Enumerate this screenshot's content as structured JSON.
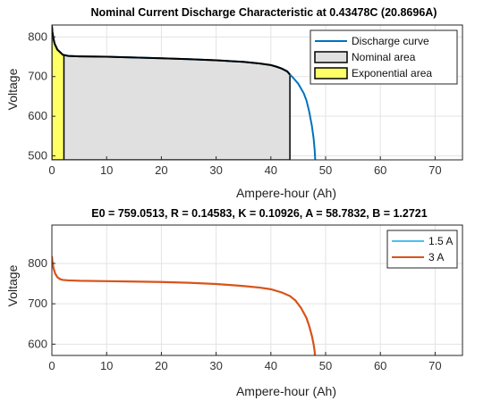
{
  "chart_data": [
    {
      "type": "line",
      "title": "Nominal Current Discharge Characteristic at 0.43478C (20.8696A)",
      "xlabel": "Ampere-hour (Ah)",
      "ylabel": "Voltage",
      "xlim": [
        0,
        75
      ],
      "ylim": [
        490,
        830
      ],
      "xticks": [
        0,
        10,
        20,
        30,
        40,
        50,
        60,
        70
      ],
      "yticks": [
        500,
        600,
        700,
        800
      ],
      "grid": true,
      "legend_position": "top-right",
      "legend": [
        {
          "label": "Discharge curve",
          "kind": "line",
          "color": "#0072BD"
        },
        {
          "label": "Nominal area",
          "kind": "patch",
          "color": "#E0E0E0"
        },
        {
          "label": "Exponential area",
          "kind": "patch",
          "color": "#FFFF66"
        }
      ],
      "series": [
        {
          "name": "Discharge curve",
          "color": "#0072BD",
          "x": [
            0,
            0.1,
            0.3,
            0.5,
            1,
            2,
            3,
            5,
            10,
            15,
            20,
            25,
            30,
            35,
            38,
            40,
            41,
            42,
            43,
            43.48,
            44,
            45,
            46,
            46.5,
            47,
            47.5,
            47.8,
            48.0,
            48.1
          ],
          "y": [
            828,
            812,
            795,
            783,
            768,
            755,
            752,
            751,
            750,
            748,
            746,
            744,
            741,
            737,
            733,
            729,
            725,
            720,
            713,
            705,
            698,
            682,
            658,
            640,
            612,
            575,
            545,
            515,
            490
          ]
        }
      ],
      "areas": [
        {
          "name": "Nominal area",
          "color": "#E0E0E0",
          "x_start": 0,
          "x_end": 43.48
        },
        {
          "name": "Exponential area",
          "color": "#FFFF66",
          "x_start": 0,
          "x_end": 2.2
        }
      ]
    },
    {
      "type": "line",
      "title": "E0 = 759.0513, R = 0.14583, K = 0.10926, A = 58.7832, B = 1.2721",
      "xlabel": "Ampere-hour (Ah)",
      "ylabel": "Voltage",
      "xlim": [
        0,
        75
      ],
      "ylim": [
        572,
        895
      ],
      "xticks": [
        0,
        10,
        20,
        30,
        40,
        50,
        60,
        70
      ],
      "yticks": [
        600,
        700,
        800
      ],
      "grid": true,
      "legend_position": "top-right",
      "series": [
        {
          "name": "1.5 A",
          "color": "#4DBEEE",
          "x": [
            0,
            0.1,
            0.3,
            0.6,
            1,
            1.5,
            2,
            3,
            5,
            10,
            15,
            20,
            25,
            30,
            35,
            38,
            40,
            42,
            43.5,
            44.5,
            45.5,
            46.5,
            47,
            47.5,
            47.8,
            48.0,
            48.05
          ],
          "y": [
            818,
            805,
            788,
            775,
            766,
            761,
            759,
            758,
            757,
            756,
            755,
            754,
            752,
            749,
            744,
            740,
            736,
            728,
            719,
            708,
            690,
            665,
            645,
            620,
            600,
            582,
            572
          ]
        },
        {
          "name": "3 A",
          "color": "#D95319",
          "x": [
            0,
            0.1,
            0.3,
            0.6,
            1,
            1.5,
            2,
            3,
            5,
            10,
            15,
            20,
            25,
            30,
            35,
            38,
            40,
            42,
            43.5,
            44.5,
            45.5,
            46.5,
            47,
            47.5,
            47.8,
            48.0,
            48.05
          ],
          "y": [
            818,
            805,
            788,
            775,
            766,
            761,
            759,
            758,
            757,
            756,
            755,
            754,
            752,
            749,
            744,
            740,
            736,
            728,
            719,
            708,
            690,
            665,
            645,
            620,
            600,
            582,
            572
          ]
        }
      ]
    }
  ]
}
